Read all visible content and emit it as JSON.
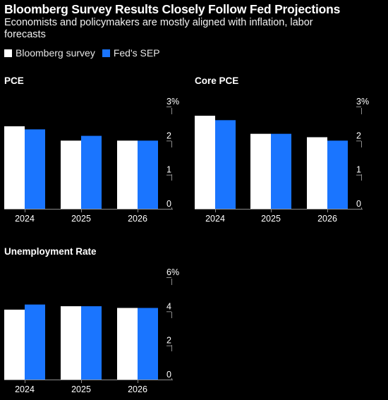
{
  "title": "Bloomberg Survey Results Closely Follow Fed Projections",
  "subtitle": "Economists and policymakers are mostly aligned with inflation, labor forecasts",
  "legend": [
    {
      "label": "Bloomberg survey",
      "color": "#ffffff"
    },
    {
      "label": "Fed's SEP",
      "color": "#1a75ff"
    }
  ],
  "colors": {
    "background": "#000000",
    "bloomberg": "#ffffff",
    "fed": "#1a75ff",
    "axis": "#8c8c8c",
    "text": "#ffffff"
  },
  "chart_data": [
    {
      "type": "bar",
      "title": "PCE",
      "categories": [
        "2024",
        "2025",
        "2026"
      ],
      "series": [
        {
          "name": "Bloomberg survey",
          "values": [
            2.42,
            2.0,
            2.0
          ]
        },
        {
          "name": "Fed's SEP",
          "values": [
            2.33,
            2.14,
            2.0
          ]
        }
      ],
      "ylim": [
        0,
        3
      ],
      "yticks": [
        "3%",
        "2",
        "1",
        "0"
      ],
      "ytick_values": [
        3,
        2,
        1,
        0
      ],
      "legend": "top-left",
      "grid": false
    },
    {
      "type": "bar",
      "title": "Core PCE",
      "categories": [
        "2024",
        "2025",
        "2026"
      ],
      "series": [
        {
          "name": "Bloomberg survey",
          "values": [
            2.73,
            2.2,
            2.1
          ]
        },
        {
          "name": "Fed's SEP",
          "values": [
            2.6,
            2.2,
            2.0
          ]
        }
      ],
      "ylim": [
        0,
        3
      ],
      "yticks": [
        "3%",
        "2",
        "1",
        "0"
      ],
      "ytick_values": [
        3,
        2,
        1,
        0
      ],
      "legend": "top-left",
      "grid": false
    },
    {
      "type": "bar",
      "title": "Unemployment Rate",
      "categories": [
        "2024",
        "2025",
        "2026"
      ],
      "series": [
        {
          "name": "Bloomberg survey",
          "values": [
            4.1,
            4.3,
            4.2
          ]
        },
        {
          "name": "Fed's SEP",
          "values": [
            4.4,
            4.3,
            4.2
          ]
        }
      ],
      "ylim": [
        0,
        6
      ],
      "yticks": [
        "6%",
        "4",
        "2",
        "0"
      ],
      "ytick_values": [
        6,
        4,
        2,
        0
      ],
      "legend": "top-left",
      "grid": false
    }
  ]
}
